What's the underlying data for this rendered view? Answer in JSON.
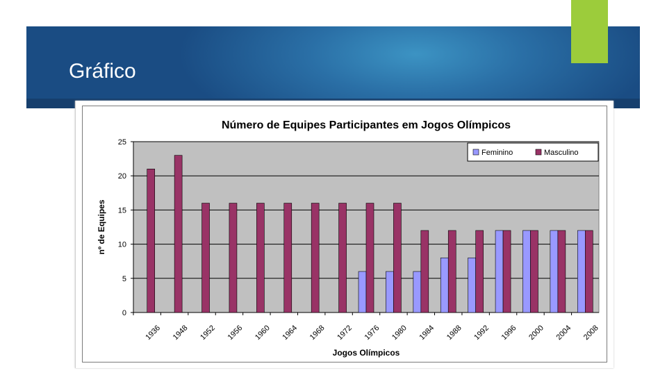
{
  "slide": {
    "title": "Gráfico"
  },
  "colors": {
    "banner": "#2a6fa6",
    "accent": "#9ccc3b",
    "feminino": "#9999ff",
    "masculino": "#993366",
    "plot_bg": "#c0c0c0"
  },
  "chart_data": {
    "type": "bar",
    "title": "Número de Equipes Participantes em Jogos Olímpicos",
    "xlabel": "Jogos Olímpicos",
    "ylabel": "nº de Equipes",
    "ylim": [
      0,
      25
    ],
    "yticks": [
      0,
      5,
      10,
      15,
      20,
      25
    ],
    "grid": true,
    "legend_position": "top-right",
    "categories": [
      "1936",
      "1948",
      "1952",
      "1956",
      "1960",
      "1964",
      "1968",
      "1972",
      "1976",
      "1980",
      "1984",
      "1988",
      "1992",
      "1996",
      "2000",
      "2004",
      "2008"
    ],
    "series": [
      {
        "name": "Feminino",
        "color": "#9999ff",
        "values": [
          null,
          null,
          null,
          null,
          null,
          null,
          null,
          null,
          6,
          6,
          6,
          8,
          8,
          12,
          12,
          12,
          12
        ]
      },
      {
        "name": "Masculino",
        "color": "#993366",
        "values": [
          21,
          23,
          16,
          16,
          16,
          16,
          16,
          16,
          16,
          16,
          12,
          12,
          12,
          12,
          12,
          12,
          12
        ]
      }
    ]
  }
}
